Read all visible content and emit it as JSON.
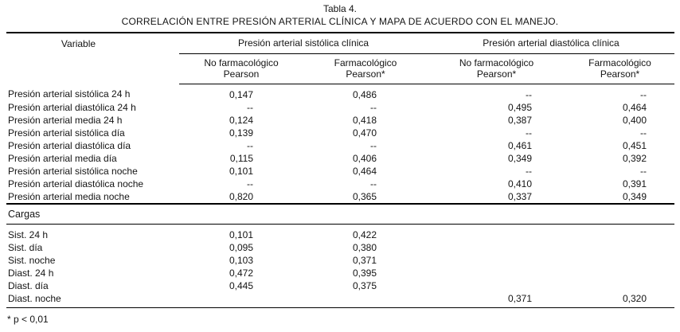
{
  "title": "Tabla 4.",
  "subtitle": "CORRELACIÓN ENTRE PRESIÓN ARTERIAL CLÍNICA Y MAPA DE ACUERDO CON EL MANEJO.",
  "table": {
    "variable_header": "Variable",
    "group_headers": [
      "Presión arterial sistólica clínica",
      "Presión arterial diastólica clínica"
    ],
    "subheaders": [
      {
        "line1": "No farmacológico",
        "line2": "Pearson"
      },
      {
        "line1": "Farmacológico",
        "line2": "Pearson*"
      },
      {
        "line1": "No farmacológico",
        "line2": "Pearson*"
      },
      {
        "line1": "Farmacológico",
        "line2": "Pearson*"
      }
    ],
    "rows": [
      {
        "label": "Presión arterial sistólica 24 h",
        "values": [
          "0,147",
          "0,486",
          "--",
          "--"
        ]
      },
      {
        "label": "Presión arterial diastólica 24 h",
        "values": [
          "--",
          "--",
          "0,495",
          "0,464"
        ]
      },
      {
        "label": "Presión arterial media 24 h",
        "values": [
          "0,124",
          "0,418",
          "0,387",
          "0,400"
        ]
      },
      {
        "label": "Presión arterial sistólica día",
        "values": [
          "0,139",
          "0,470",
          "--",
          "--"
        ]
      },
      {
        "label": "Presión arterial diastólica día",
        "values": [
          "--",
          "--",
          "0,461",
          "0,451"
        ]
      },
      {
        "label": "Presión arterial media día",
        "values": [
          "0,115",
          "0,406",
          "0,349",
          "0,392"
        ]
      },
      {
        "label": "Presión arterial sistólica noche",
        "values": [
          "0,101",
          "0,464",
          "--",
          "--"
        ]
      },
      {
        "label": "Presión arterial diastólica noche",
        "values": [
          "--",
          "--",
          "0,410",
          "0,391"
        ]
      },
      {
        "label": "Presión arterial media noche",
        "values": [
          "0,820",
          "0,365",
          "0,337",
          "0,349"
        ]
      }
    ],
    "section": {
      "label": "Cargas",
      "rows": [
        {
          "label": "Sist. 24 h",
          "values": [
            "0,101",
            "0,422",
            "",
            ""
          ]
        },
        {
          "label": "Sist. día",
          "values": [
            "0,095",
            "0,380",
            "",
            ""
          ]
        },
        {
          "label": "Sist. noche",
          "values": [
            "0,103",
            "0,371",
            "",
            ""
          ]
        },
        {
          "label": "Diast. 24 h",
          "values": [
            "0,472",
            "0,395",
            "",
            ""
          ]
        },
        {
          "label": "Diast. día",
          "values": [
            "0,445",
            "0,375",
            "",
            ""
          ]
        },
        {
          "label": "Diast. noche",
          "values": [
            "",
            "",
            "0,371",
            "0,320"
          ]
        }
      ]
    }
  },
  "footnote": "* p < 0,01"
}
